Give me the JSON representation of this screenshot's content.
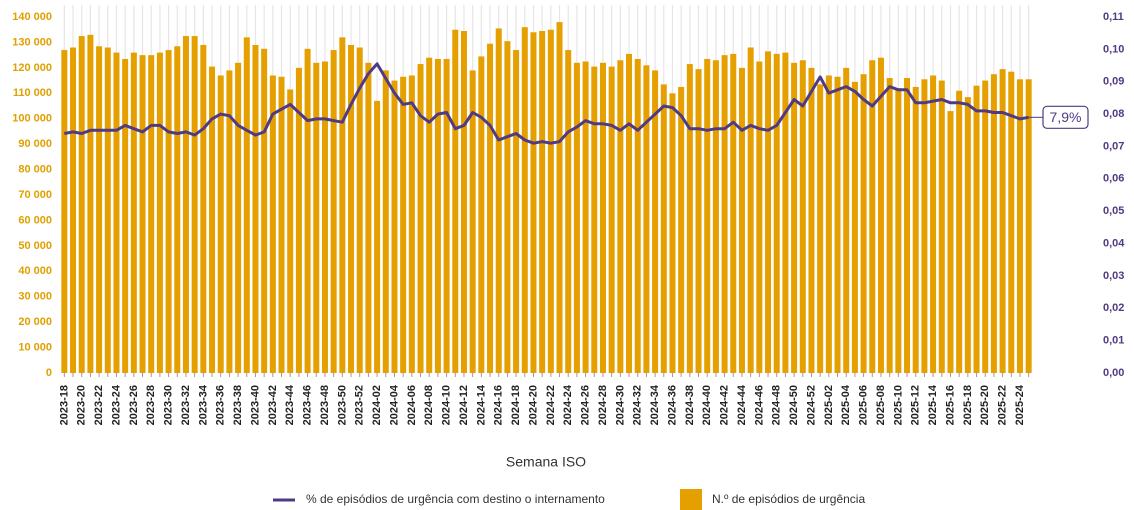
{
  "chart_data": {
    "type": "bar-line",
    "x_label": "Semana ISO",
    "categories": [
      "2023-18",
      null,
      "2023-20",
      null,
      "2023-22",
      null,
      "2023-24",
      null,
      "2023-26",
      null,
      "2023-28",
      null,
      "2023-30",
      null,
      "2023-32",
      null,
      "2023-34",
      null,
      "2023-36",
      null,
      "2023-38",
      null,
      "2023-40",
      null,
      "2023-42",
      null,
      "2023-44",
      null,
      "2023-46",
      null,
      "2023-48",
      null,
      "2023-50",
      null,
      "2023-52",
      null,
      "2024-02",
      null,
      "2024-04",
      null,
      "2024-06",
      null,
      "2024-08",
      null,
      "2024-10",
      null,
      "2024-12",
      null,
      "2024-14",
      null,
      "2024-16",
      null,
      "2024-18",
      null,
      "2024-20",
      null,
      "2024-22",
      null,
      "2024-24",
      null,
      "2024-26",
      null,
      "2024-28",
      null,
      "2024-30",
      null,
      "2024-32",
      null,
      "2024-34",
      null,
      "2024-36",
      null,
      "2024-38",
      null,
      "2024-40",
      null,
      "2024-42",
      null,
      "2024-44",
      null,
      "2024-46",
      null,
      "2024-48",
      null,
      "2024-50",
      null,
      "2024-52",
      null,
      "2025-02",
      null,
      "2025-04",
      null,
      "2025-06",
      null,
      "2025-08",
      null,
      "2025-10",
      null,
      "2025-12",
      null,
      "2025-14",
      null,
      "2025-16",
      null,
      "2025-18",
      null,
      "2025-20",
      null,
      "2025-22",
      null,
      "2025-24",
      null
    ],
    "series": [
      {
        "name": "% de episódios de urgência com destino o internamento",
        "color": "#4f3b84",
        "axis": "y2",
        "kind": "line",
        "values": [
          0.074,
          0.0745,
          0.074,
          0.075,
          0.075,
          0.075,
          0.075,
          0.0765,
          0.0755,
          0.0745,
          0.0765,
          0.0765,
          0.0745,
          0.074,
          0.0745,
          0.0735,
          0.0755,
          0.0785,
          0.08,
          0.0795,
          0.0765,
          0.075,
          0.0735,
          0.0745,
          0.08,
          0.0815,
          0.083,
          0.0805,
          0.078,
          0.0785,
          0.0785,
          0.078,
          0.0775,
          0.083,
          0.088,
          0.0925,
          0.0955,
          0.091,
          0.0865,
          0.083,
          0.0835,
          0.0795,
          0.0775,
          0.08,
          0.0805,
          0.0755,
          0.0765,
          0.0805,
          0.079,
          0.0765,
          0.072,
          0.073,
          0.074,
          0.072,
          0.071,
          0.0715,
          0.071,
          0.0715,
          0.0745,
          0.076,
          0.078,
          0.077,
          0.077,
          0.0765,
          0.075,
          0.077,
          0.075,
          0.0775,
          0.08,
          0.0825,
          0.082,
          0.0795,
          0.0755,
          0.0755,
          0.075,
          0.0755,
          0.0755,
          0.0775,
          0.075,
          0.0765,
          0.0755,
          0.075,
          0.0765,
          0.0805,
          0.0845,
          0.0825,
          0.087,
          0.0915,
          0.0865,
          0.0875,
          0.0885,
          0.087,
          0.0845,
          0.0825,
          0.0855,
          0.0885,
          0.0875,
          0.0875,
          0.0835,
          0.0835,
          0.084,
          0.0845,
          0.0835,
          0.0835,
          0.083,
          0.081,
          0.081,
          0.0805,
          0.0805,
          0.0795,
          0.0785,
          0.079
        ],
        "value_labels": [
          null,
          null,
          null,
          null,
          null,
          null,
          null,
          null,
          null,
          null,
          null,
          null,
          null,
          null,
          null,
          null,
          null,
          null,
          null,
          null,
          null,
          null,
          null,
          null,
          null,
          null,
          null,
          null,
          null,
          null,
          null,
          null,
          null,
          null,
          null,
          null,
          null,
          null,
          null,
          null,
          null,
          null,
          null,
          null,
          null,
          null,
          null,
          null,
          null,
          null,
          null,
          null,
          null,
          null,
          null,
          null,
          null,
          null,
          null,
          null,
          null,
          null,
          null,
          null,
          null,
          null,
          null,
          null,
          null,
          null,
          null,
          null,
          null,
          null,
          null,
          null,
          null,
          null,
          null,
          null,
          null,
          null,
          null,
          null,
          null,
          null,
          null,
          null,
          null,
          null,
          null,
          null,
          null,
          null,
          null,
          null,
          null,
          null,
          null,
          null,
          null,
          null,
          null,
          null,
          null,
          null,
          null,
          null,
          null,
          null,
          null,
          "7,9%"
        ]
      },
      {
        "name": "N.º de episódios de urgência",
        "color": "#e5a000",
        "kind": "bar",
        "values": [
          127000,
          128000,
          132500,
          133000,
          128500,
          128000,
          126000,
          123500,
          126000,
          125000,
          125000,
          126000,
          127000,
          128500,
          132500,
          132500,
          129000,
          120500,
          117000,
          119000,
          122000,
          132000,
          129000,
          127500,
          117000,
          116500,
          111500,
          120000,
          127500,
          122000,
          122500,
          127000,
          132000,
          129000,
          128000,
          122000,
          107000,
          119000,
          115000,
          116500,
          117000,
          121500,
          124000,
          123500,
          123500,
          135000,
          134500,
          119000,
          124500,
          129500,
          135500,
          130500,
          127000,
          136000,
          134000,
          134500,
          135000,
          138000,
          127000,
          122000,
          122500,
          120500,
          122000,
          120500,
          123000,
          125500,
          123500,
          121000,
          119000,
          113500,
          110000,
          112500,
          121500,
          119500,
          123500,
          123000,
          125000,
          125500,
          120000,
          128000,
          122500,
          126500,
          125500,
          126000,
          122000,
          123000,
          120000,
          113500,
          117000,
          116500,
          120000,
          114500,
          117500,
          123000,
          124000,
          116000,
          112000,
          116000,
          112500,
          115500,
          117000,
          115000,
          103000,
          111000,
          108500,
          113000,
          115000,
          117500,
          119500,
          118500,
          115500,
          115500
        ]
      }
    ],
    "ylim": [
      0,
      140000
    ],
    "yticks": [
      0,
      {
        "value": 10000,
        "label": "10 000"
      },
      {
        "value": 20000,
        "label": "20 000"
      },
      {
        "value": 30000,
        "label": "30 000"
      },
      {
        "value": 40000,
        "label": "40 000"
      },
      {
        "value": 50000,
        "label": "50 000"
      },
      {
        "value": 60000,
        "label": "60 000"
      },
      {
        "value": 70000,
        "label": "70 000"
      },
      {
        "value": 80000,
        "label": "80 000"
      },
      {
        "value": 90000,
        "label": "90 000"
      },
      {
        "value": 100000,
        "label": "100 000"
      },
      {
        "value": 110000,
        "label": "110 000"
      },
      {
        "value": 120000,
        "label": "120 000"
      },
      {
        "value": 130000,
        "label": "130 000"
      },
      {
        "value": 140000,
        "label": "140 000"
      }
    ],
    "y2lim": [
      0,
      0.11
    ],
    "y2ticks": [
      {
        "value": 0,
        "label": "0,00"
      },
      {
        "value": 0.01,
        "label": "0,01"
      },
      {
        "value": 0.02,
        "label": "0,02"
      },
      {
        "value": 0.03,
        "label": "0,03"
      },
      {
        "value": 0.04,
        "label": "0,04"
      },
      {
        "value": 0.05,
        "label": "0,05"
      },
      {
        "value": 0.06,
        "label": "0,06"
      },
      {
        "value": 0.07,
        "label": "0,07"
      },
      {
        "value": 0.08,
        "label": "0,08"
      },
      {
        "value": 0.09,
        "label": "0,09"
      },
      {
        "value": 0.1,
        "label": "0,10"
      },
      {
        "value": 0.11,
        "label": "0,11"
      }
    ],
    "xgrid": true
  }
}
